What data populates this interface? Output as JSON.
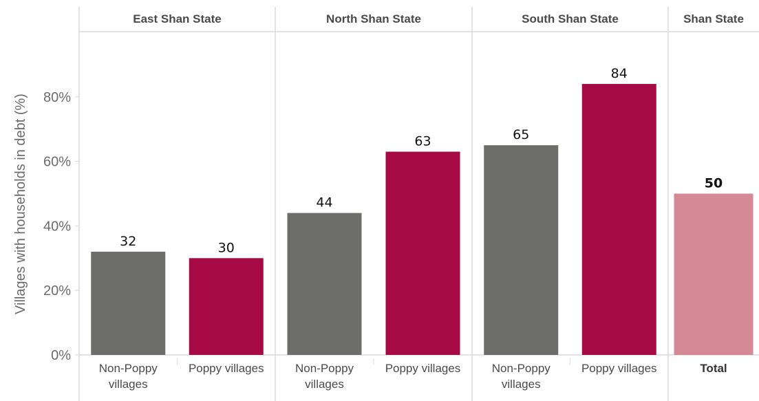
{
  "chart_data": {
    "type": "bar",
    "ylabel": "Villages with households in debt (%)",
    "ylim": [
      0,
      100
    ],
    "yticks": [
      0,
      20,
      40,
      60,
      80
    ],
    "ytick_labels": [
      "0%",
      "20%",
      "40%",
      "60%",
      "80%"
    ],
    "grid": false,
    "panels": [
      {
        "title": "East Shan State",
        "bars": [
          {
            "category": "Non-Poppy villages",
            "label_lines": [
              "Non-Poppy",
              "villages"
            ],
            "value": 32,
            "color": "#6d6d6b"
          },
          {
            "category": "Poppy villages",
            "label_lines": [
              "Poppy villages"
            ],
            "value": 30,
            "color": "#a50a44"
          }
        ]
      },
      {
        "title": "North Shan State",
        "bars": [
          {
            "category": "Non-Poppy villages",
            "label_lines": [
              "Non-Poppy",
              "villages"
            ],
            "value": 44,
            "color": "#6d6d6b"
          },
          {
            "category": "Poppy villages",
            "label_lines": [
              "Poppy villages"
            ],
            "value": 63,
            "color": "#a50a44"
          }
        ]
      },
      {
        "title": "South Shan State",
        "bars": [
          {
            "category": "Non-Poppy villages",
            "label_lines": [
              "Non-Poppy",
              "villages"
            ],
            "value": 65,
            "color": "#6d6d6b"
          },
          {
            "category": "Poppy villages",
            "label_lines": [
              "Poppy villages"
            ],
            "value": 84,
            "color": "#a50a44"
          }
        ]
      },
      {
        "title": "Shan State",
        "bars": [
          {
            "category": "Total",
            "label_lines": [
              "Total"
            ],
            "value": 50,
            "color": "#d48994",
            "bold": true
          }
        ]
      }
    ]
  }
}
